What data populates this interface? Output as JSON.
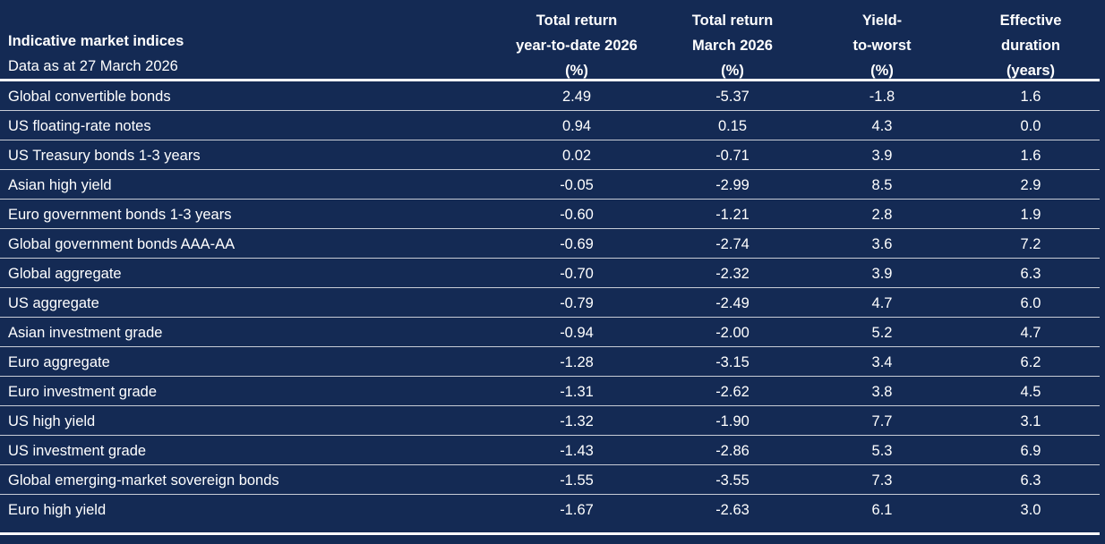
{
  "title": "Indicative market indices",
  "subtitle": "Data as at 27 March 2026",
  "columns": [
    [
      "Total return",
      "year-to-date 2026",
      "(%)"
    ],
    [
      "Total return",
      "March 2026",
      "(%)"
    ],
    [
      "Yield-",
      "to-worst",
      "(%)"
    ],
    [
      "Effective",
      "duration",
      "(years)"
    ]
  ],
  "rows": [
    {
      "label": "Global convertible bonds",
      "values": [
        "2.49",
        "-5.37",
        "-1.8",
        "1.6"
      ]
    },
    {
      "label": "US floating-rate notes",
      "values": [
        "0.94",
        "0.15",
        "4.3",
        "0.0"
      ]
    },
    {
      "label": "US Treasury bonds 1-3 years",
      "values": [
        "0.02",
        "-0.71",
        "3.9",
        "1.6"
      ]
    },
    {
      "label": "Asian high yield",
      "values": [
        "-0.05",
        "-2.99",
        "8.5",
        "2.9"
      ]
    },
    {
      "label": "Euro government bonds 1-3 years",
      "values": [
        "-0.60",
        "-1.21",
        "2.8",
        "1.9"
      ]
    },
    {
      "label": "Global government bonds AAA-AA",
      "values": [
        "-0.69",
        "-2.74",
        "3.6",
        "7.2"
      ]
    },
    {
      "label": "Global aggregate",
      "values": [
        "-0.70",
        "-2.32",
        "3.9",
        "6.3"
      ]
    },
    {
      "label": "US aggregate",
      "values": [
        "-0.79",
        "-2.49",
        "4.7",
        "6.0"
      ]
    },
    {
      "label": "Asian investment grade",
      "values": [
        "-0.94",
        "-2.00",
        "5.2",
        "4.7"
      ]
    },
    {
      "label": "Euro aggregate",
      "values": [
        "-1.28",
        "-3.15",
        "3.4",
        "6.2"
      ]
    },
    {
      "label": "Euro investment grade",
      "values": [
        "-1.31",
        "-2.62",
        "3.8",
        "4.5"
      ]
    },
    {
      "label": "US high yield",
      "values": [
        "-1.32",
        "-1.90",
        "7.7",
        "3.1"
      ]
    },
    {
      "label": "US investment grade",
      "values": [
        "-1.43",
        "-2.86",
        "5.3",
        "6.9"
      ]
    },
    {
      "label": "Global emerging-market sovereign bonds",
      "values": [
        "-1.55",
        "-3.55",
        "7.3",
        "6.3"
      ]
    },
    {
      "label": "Euro high yield",
      "values": [
        "-1.67",
        "-2.63",
        "6.1",
        "3.0"
      ]
    }
  ],
  "colors": {
    "background": "#142a54",
    "text": "#ffffff",
    "rule": "#c8ccd6"
  }
}
